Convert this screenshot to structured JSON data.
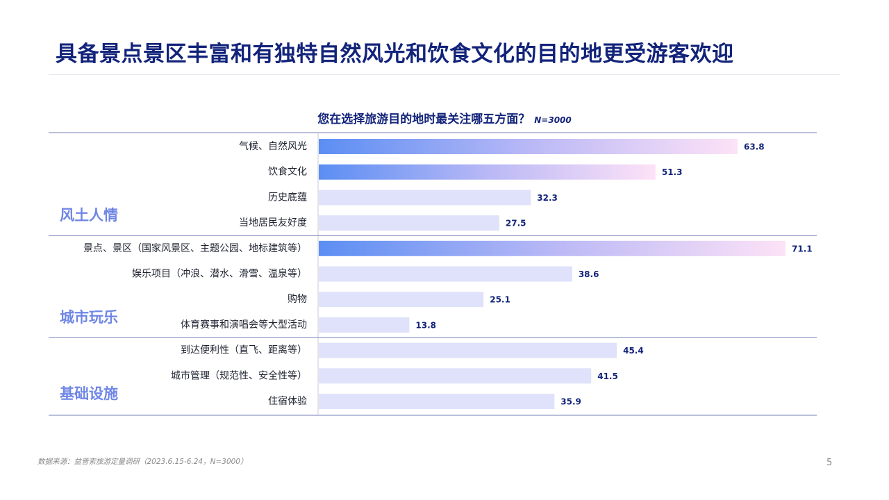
{
  "page": {
    "title": "具备景点景区丰富和有独特自然风光和饮食文化的目的地更受游客欢迎",
    "footnote": "数据来源：益普索旅游定量调研（2023.6.15-6.24，N=3000）",
    "page_number": "5"
  },
  "chart_data": {
    "type": "bar",
    "orientation": "horizontal",
    "title": "您在选择旅游目的地时最关注哪五方面？",
    "sample_note": "N=3000",
    "xlim": [
      0,
      75
    ],
    "grid": false,
    "groups": [
      {
        "label": "风土人情",
        "start": 0,
        "end": 3
      },
      {
        "label": "城市玩乐",
        "start": 4,
        "end": 7
      },
      {
        "label": "基础设施",
        "start": 8,
        "end": 10
      }
    ],
    "categories": [
      "气候、自然风光",
      "饮食文化",
      "历史底蕴",
      "当地居民友好度",
      "景点、景区（国家风景区、主题公园、地标建筑等）",
      "娱乐项目（冲浪、潜水、滑雪、温泉等）",
      "购物",
      "体育赛事和演唱会等大型活动",
      "到达便利性（直飞、距离等）",
      "城市管理（规范性、安全性等）",
      "住宿体验"
    ],
    "values": [
      63.8,
      51.3,
      32.3,
      27.5,
      71.1,
      38.6,
      25.1,
      13.8,
      45.4,
      41.5,
      35.9
    ],
    "value_labels": [
      "63.8",
      "51.3",
      "32.3",
      "27.5",
      "71.1",
      "38.6",
      "25.1",
      "13.8",
      "45.4",
      "41.5",
      "35.9"
    ],
    "highlighted": [
      true,
      true,
      false,
      false,
      true,
      false,
      false,
      false,
      false,
      false,
      false
    ],
    "colors": {
      "gradient_start": "#5b8ef3",
      "gradient_mid": "#b9b8f6",
      "gradient_end": "#fde2f7",
      "plain_bar": "#dfe2fa",
      "value_label": "#12237a",
      "group_label": "#6f86e6",
      "separator": "#8d9bc4"
    }
  }
}
